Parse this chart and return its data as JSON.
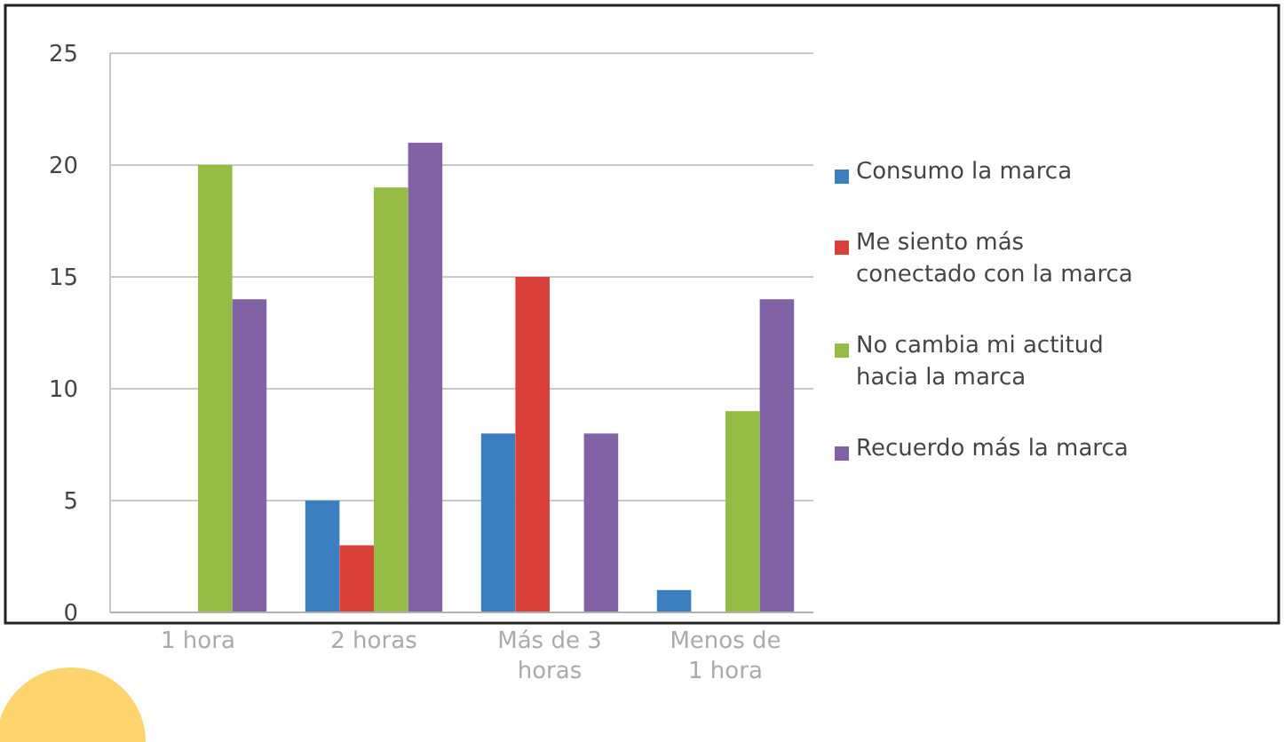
{
  "chart_data": {
    "type": "bar",
    "categories": [
      "1 hora",
      "2 horas",
      "Más de 3 horas",
      "Menos de 1 hora"
    ],
    "series": [
      {
        "name": "Consumo la marca",
        "color": "#3c7fc0",
        "values": [
          0,
          5,
          8,
          1
        ]
      },
      {
        "name": "Me siento más conectado con la marca",
        "color": "#d9403a",
        "values": [
          0,
          3,
          15,
          0
        ]
      },
      {
        "name": "No cambia mi actitud hacia la marca",
        "color": "#95bd45",
        "values": [
          20,
          19,
          0,
          9
        ]
      },
      {
        "name": "Recuerdo más la marca",
        "color": "#8062a5",
        "values": [
          14,
          21,
          8,
          14
        ]
      }
    ],
    "ylim": [
      0,
      25
    ],
    "yticks": [
      0,
      5,
      10,
      15,
      20,
      25
    ],
    "grid": "y",
    "legend": "right"
  }
}
